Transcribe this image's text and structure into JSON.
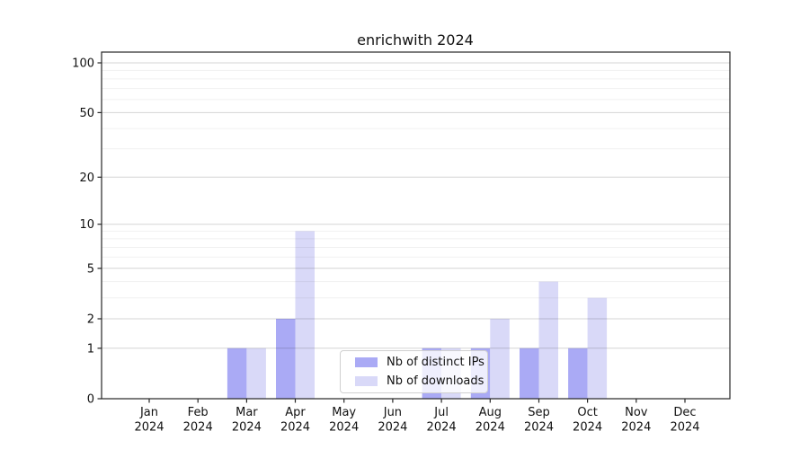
{
  "chart_data": {
    "type": "bar",
    "title": "enrichwith 2024",
    "categories": [
      "Jan",
      "Feb",
      "Mar",
      "Apr",
      "May",
      "Jun",
      "Jul",
      "Aug",
      "Sep",
      "Oct",
      "Nov",
      "Dec"
    ],
    "year_label": "2024",
    "series": [
      {
        "name": "Nb of distinct IPs",
        "color": "#aaaaf5",
        "values": [
          0,
          0,
          1,
          2,
          0,
          0,
          1,
          1,
          1,
          1,
          0,
          0
        ]
      },
      {
        "name": "Nb of downloads",
        "color": "#d9d9f8",
        "values": [
          0,
          0,
          1,
          9,
          0,
          0,
          1,
          2,
          4,
          3,
          0,
          0
        ]
      }
    ],
    "xlabel": "",
    "ylabel": "",
    "y_scale": "log1p",
    "y_ticks": [
      0,
      1,
      2,
      5,
      10,
      20,
      50,
      100
    ],
    "y_minor_ticks": [
      3,
      4,
      6,
      7,
      8,
      9,
      30,
      40,
      60,
      70,
      80,
      90
    ],
    "ylim": [
      0,
      115
    ],
    "grid": true,
    "grid_on_top": true,
    "legend_position": "lower center inside axes",
    "colors": {
      "spine": "#262626",
      "tick_label": "#111111",
      "major_grid": "rgba(0,0,0,0.17)",
      "minor_grid": "rgba(0,0,0,0.06)"
    }
  }
}
